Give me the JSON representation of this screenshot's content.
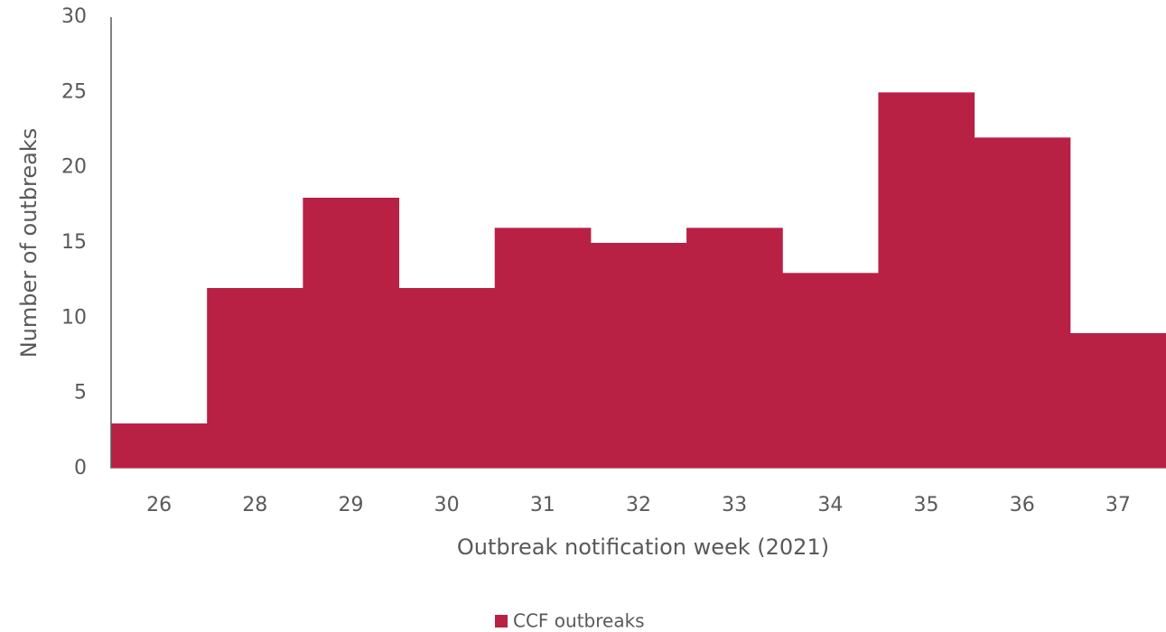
{
  "chart_data": {
    "type": "bar",
    "xlabel": "Outbreak notification week (2021)",
    "ylabel": "Number of outbreaks",
    "categories": [
      "26",
      "28",
      "29",
      "30",
      "31",
      "32",
      "33",
      "34",
      "35",
      "36",
      "37"
    ],
    "series": [
      {
        "name": "CCF outbreaks",
        "color": "#b82044",
        "values": [
          3,
          12,
          18,
          12,
          16,
          15,
          16,
          13,
          25,
          22,
          9
        ]
      }
    ],
    "ylim": [
      0,
      30
    ],
    "yticks": [
      0,
      5,
      10,
      15,
      20,
      25,
      30
    ],
    "legend": "bottom"
  }
}
